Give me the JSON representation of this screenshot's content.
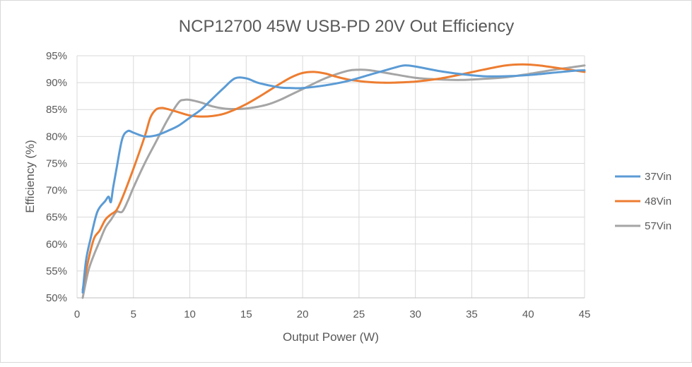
{
  "chart_data": {
    "type": "line",
    "title": "NCP12700 45W USB-PD 20V Out Efficiency",
    "xlabel": "Output Power (W)",
    "ylabel": "Efficiency (%)",
    "xlim": [
      0,
      45
    ],
    "ylim": [
      50,
      95
    ],
    "x_ticks": [
      0,
      5,
      10,
      15,
      20,
      25,
      30,
      35,
      40,
      45
    ],
    "y_ticks": [
      50,
      55,
      60,
      65,
      70,
      75,
      80,
      85,
      90,
      95
    ],
    "x_tick_labels": [
      "0",
      "5",
      "10",
      "15",
      "20",
      "25",
      "30",
      "35",
      "40",
      "45"
    ],
    "y_tick_labels": [
      "50%",
      "55%",
      "60%",
      "65%",
      "70%",
      "75%",
      "80%",
      "85%",
      "90%",
      "95%"
    ],
    "grid": "horizontal",
    "legend_position": "right",
    "series": [
      {
        "name": "37Vin",
        "color": "#5b9bd5",
        "points": [
          [
            0.5,
            51.0
          ],
          [
            0.8,
            57.0
          ],
          [
            1.2,
            61.0
          ],
          [
            1.8,
            66.0
          ],
          [
            2.5,
            68.0
          ],
          [
            2.8,
            68.8
          ],
          [
            3.0,
            67.8
          ],
          [
            3.2,
            70.5
          ],
          [
            3.5,
            74.0
          ],
          [
            4.0,
            79.5
          ],
          [
            4.5,
            81.0
          ],
          [
            5.0,
            80.7
          ],
          [
            6.0,
            80.0
          ],
          [
            7.0,
            80.2
          ],
          [
            8.0,
            81.0
          ],
          [
            9.0,
            82.0
          ],
          [
            10.0,
            83.5
          ],
          [
            11.0,
            85.0
          ],
          [
            12.0,
            87.0
          ],
          [
            13.0,
            89.0
          ],
          [
            14.0,
            90.8
          ],
          [
            15.0,
            90.8
          ],
          [
            16.0,
            90.0
          ],
          [
            17.0,
            89.5
          ],
          [
            18.0,
            89.1
          ],
          [
            19.0,
            89.0
          ],
          [
            20.0,
            89.0
          ],
          [
            22.0,
            89.5
          ],
          [
            24.0,
            90.3
          ],
          [
            26.0,
            91.5
          ],
          [
            28.0,
            92.7
          ],
          [
            29.0,
            93.2
          ],
          [
            30.0,
            93.0
          ],
          [
            32.0,
            92.2
          ],
          [
            34.0,
            91.6
          ],
          [
            36.0,
            91.2
          ],
          [
            38.0,
            91.2
          ],
          [
            40.0,
            91.4
          ],
          [
            42.0,
            91.8
          ],
          [
            44.0,
            92.2
          ],
          [
            45.0,
            92.3
          ]
        ]
      },
      {
        "name": "48Vin",
        "color": "#ed7d31",
        "points": [
          [
            0.5,
            51.5
          ],
          [
            1.0,
            57.0
          ],
          [
            1.5,
            61.0
          ],
          [
            2.0,
            62.5
          ],
          [
            2.5,
            64.5
          ],
          [
            3.0,
            65.5
          ],
          [
            3.5,
            66.3
          ],
          [
            4.0,
            68.5
          ],
          [
            5.0,
            74.0
          ],
          [
            6.0,
            80.0
          ],
          [
            6.5,
            83.5
          ],
          [
            7.0,
            85.0
          ],
          [
            7.5,
            85.3
          ],
          [
            8.0,
            85.1
          ],
          [
            9.0,
            84.5
          ],
          [
            10.0,
            83.9
          ],
          [
            11.0,
            83.7
          ],
          [
            12.0,
            83.8
          ],
          [
            13.0,
            84.2
          ],
          [
            14.0,
            85.0
          ],
          [
            15.0,
            86.0
          ],
          [
            16.0,
            87.2
          ],
          [
            17.0,
            88.5
          ],
          [
            18.0,
            89.8
          ],
          [
            19.0,
            91.0
          ],
          [
            20.0,
            91.8
          ],
          [
            21.0,
            92.0
          ],
          [
            22.0,
            91.7
          ],
          [
            23.0,
            91.1
          ],
          [
            24.0,
            90.6
          ],
          [
            25.0,
            90.3
          ],
          [
            26.0,
            90.1
          ],
          [
            27.0,
            90.0
          ],
          [
            28.0,
            90.0
          ],
          [
            30.0,
            90.2
          ],
          [
            32.0,
            90.7
          ],
          [
            34.0,
            91.5
          ],
          [
            36.0,
            92.4
          ],
          [
            38.0,
            93.2
          ],
          [
            39.5,
            93.4
          ],
          [
            41.0,
            93.2
          ],
          [
            43.0,
            92.6
          ],
          [
            45.0,
            92.0
          ]
        ]
      },
      {
        "name": "57Vin",
        "color": "#a5a5a5",
        "points": [
          [
            0.5,
            50.0
          ],
          [
            1.0,
            55.0
          ],
          [
            1.5,
            58.0
          ],
          [
            2.0,
            60.5
          ],
          [
            2.5,
            63.0
          ],
          [
            3.0,
            64.5
          ],
          [
            3.5,
            66.0
          ],
          [
            4.0,
            66.0
          ],
          [
            4.5,
            68.0
          ],
          [
            5.0,
            70.5
          ],
          [
            6.0,
            75.0
          ],
          [
            7.0,
            79.0
          ],
          [
            8.0,
            83.0
          ],
          [
            9.0,
            86.3
          ],
          [
            9.5,
            86.8
          ],
          [
            10.0,
            86.8
          ],
          [
            11.0,
            86.3
          ],
          [
            12.0,
            85.6
          ],
          [
            13.0,
            85.2
          ],
          [
            14.0,
            85.1
          ],
          [
            15.0,
            85.2
          ],
          [
            16.0,
            85.5
          ],
          [
            17.0,
            86.0
          ],
          [
            18.0,
            86.8
          ],
          [
            19.0,
            87.8
          ],
          [
            20.0,
            88.8
          ],
          [
            22.0,
            90.8
          ],
          [
            24.0,
            92.2
          ],
          [
            25.0,
            92.4
          ],
          [
            26.0,
            92.3
          ],
          [
            28.0,
            91.6
          ],
          [
            30.0,
            90.9
          ],
          [
            32.0,
            90.6
          ],
          [
            34.0,
            90.5
          ],
          [
            36.0,
            90.7
          ],
          [
            38.0,
            91.0
          ],
          [
            40.0,
            91.6
          ],
          [
            42.0,
            92.3
          ],
          [
            44.0,
            92.9
          ],
          [
            45.0,
            93.2
          ]
        ]
      }
    ]
  }
}
